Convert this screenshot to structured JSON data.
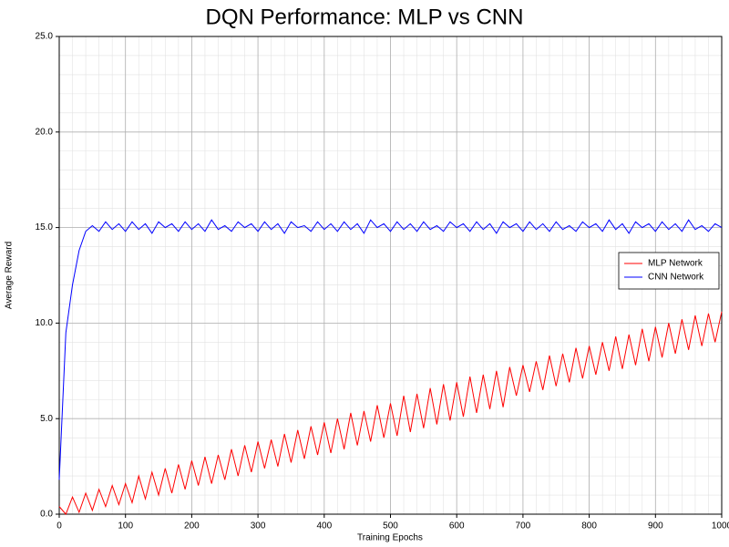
{
  "chart_data": {
    "type": "line",
    "title": "DQN Performance: MLP vs CNN",
    "x_label": "Training Epochs",
    "y_label": "Average Reward",
    "x": [
      0,
      10,
      20,
      30,
      40,
      50,
      60,
      70,
      80,
      90,
      100,
      110,
      120,
      130,
      140,
      150,
      160,
      170,
      180,
      190,
      200,
      210,
      220,
      230,
      240,
      250,
      260,
      270,
      280,
      290,
      300,
      310,
      320,
      330,
      340,
      350,
      360,
      370,
      380,
      390,
      400,
      410,
      420,
      430,
      440,
      450,
      460,
      470,
      480,
      490,
      500,
      510,
      520,
      530,
      540,
      550,
      560,
      570,
      580,
      590,
      600,
      610,
      620,
      630,
      640,
      650,
      660,
      670,
      680,
      690,
      700,
      710,
      720,
      730,
      740,
      750,
      760,
      770,
      780,
      790,
      800,
      810,
      820,
      830,
      840,
      850,
      860,
      870,
      880,
      890,
      900,
      910,
      920,
      930,
      940,
      950,
      960,
      970,
      980,
      990,
      1000
    ],
    "series": [
      {
        "name": "MLP Network",
        "color": "#ff0000",
        "values": [
          0.4,
          0.0,
          0.9,
          0.1,
          1.1,
          0.2,
          1.3,
          0.4,
          1.5,
          0.5,
          1.6,
          0.6,
          2.0,
          0.8,
          2.2,
          1.0,
          2.4,
          1.1,
          2.6,
          1.3,
          2.8,
          1.5,
          3.0,
          1.6,
          3.1,
          1.8,
          3.4,
          2.0,
          3.6,
          2.2,
          3.8,
          2.4,
          3.9,
          2.5,
          4.2,
          2.7,
          4.4,
          2.9,
          4.6,
          3.1,
          4.8,
          3.2,
          5.0,
          3.4,
          5.3,
          3.6,
          5.4,
          3.8,
          5.7,
          4.0,
          5.8,
          4.1,
          6.2,
          4.3,
          6.3,
          4.5,
          6.6,
          4.7,
          6.8,
          4.9,
          6.9,
          5.1,
          7.2,
          5.3,
          7.3,
          5.5,
          7.5,
          5.6,
          7.7,
          6.2,
          7.8,
          6.4,
          8.0,
          6.5,
          8.3,
          6.7,
          8.4,
          6.9,
          8.7,
          7.1,
          8.8,
          7.3,
          9.0,
          7.5,
          9.3,
          7.6,
          9.4,
          7.8,
          9.7,
          8.0,
          9.8,
          8.2,
          10.0,
          8.4,
          10.2,
          8.6,
          10.4,
          8.8,
          10.5,
          9.0,
          10.6
        ]
      },
      {
        "name": "CNN Network",
        "color": "#0000ff",
        "values": [
          1.8,
          9.5,
          12.0,
          13.8,
          14.8,
          15.1,
          14.8,
          15.3,
          14.9,
          15.2,
          14.8,
          15.3,
          14.9,
          15.2,
          14.7,
          15.3,
          15.0,
          15.2,
          14.8,
          15.3,
          14.9,
          15.2,
          14.8,
          15.4,
          14.9,
          15.1,
          14.8,
          15.3,
          15.0,
          15.2,
          14.8,
          15.3,
          14.9,
          15.2,
          14.7,
          15.3,
          15.0,
          15.1,
          14.8,
          15.3,
          14.9,
          15.2,
          14.8,
          15.3,
          14.9,
          15.2,
          14.7,
          15.4,
          15.0,
          15.2,
          14.8,
          15.3,
          14.9,
          15.2,
          14.8,
          15.3,
          14.9,
          15.1,
          14.8,
          15.3,
          15.0,
          15.2,
          14.8,
          15.3,
          14.9,
          15.2,
          14.7,
          15.3,
          15.0,
          15.2,
          14.8,
          15.3,
          14.9,
          15.2,
          14.8,
          15.3,
          14.9,
          15.1,
          14.8,
          15.3,
          15.0,
          15.2,
          14.8,
          15.4,
          14.9,
          15.2,
          14.7,
          15.3,
          15.0,
          15.2,
          14.8,
          15.3,
          14.9,
          15.2,
          14.8,
          15.4,
          14.9,
          15.1,
          14.8,
          15.2,
          15.0
        ]
      }
    ],
    "xlim": [
      0,
      1000
    ],
    "ylim": [
      0,
      25
    ],
    "xticks": [
      0,
      100,
      200,
      300,
      400,
      500,
      600,
      700,
      800,
      900,
      1000
    ],
    "yticks": [
      {
        "value": 0,
        "label": "0.0"
      },
      {
        "value": 5,
        "label": "5.0"
      },
      {
        "value": 10,
        "label": "10.0"
      },
      {
        "value": 15,
        "label": "15.0"
      },
      {
        "value": 20,
        "label": "20.0"
      },
      {
        "value": 25,
        "label": "25.0"
      }
    ],
    "minor_xticks": [
      0,
      20,
      40,
      60,
      80,
      100,
      120,
      140,
      160,
      180,
      200,
      220,
      240,
      260,
      280,
      300,
      320,
      340,
      360,
      380,
      400,
      420,
      440,
      460,
      480,
      500,
      520,
      540,
      560,
      580,
      600,
      620,
      640,
      660,
      680,
      700,
      720,
      740,
      760,
      780,
      800,
      820,
      840,
      860,
      880,
      900,
      920,
      940,
      960,
      980,
      1000
    ],
    "minor_yticks": [
      0,
      1,
      2,
      3,
      4,
      5,
      6,
      7,
      8,
      9,
      10,
      11,
      12,
      13,
      14,
      15,
      16,
      17,
      18,
      19,
      20,
      21,
      22,
      23,
      24,
      25
    ],
    "grid": true,
    "legend": "center right"
  }
}
